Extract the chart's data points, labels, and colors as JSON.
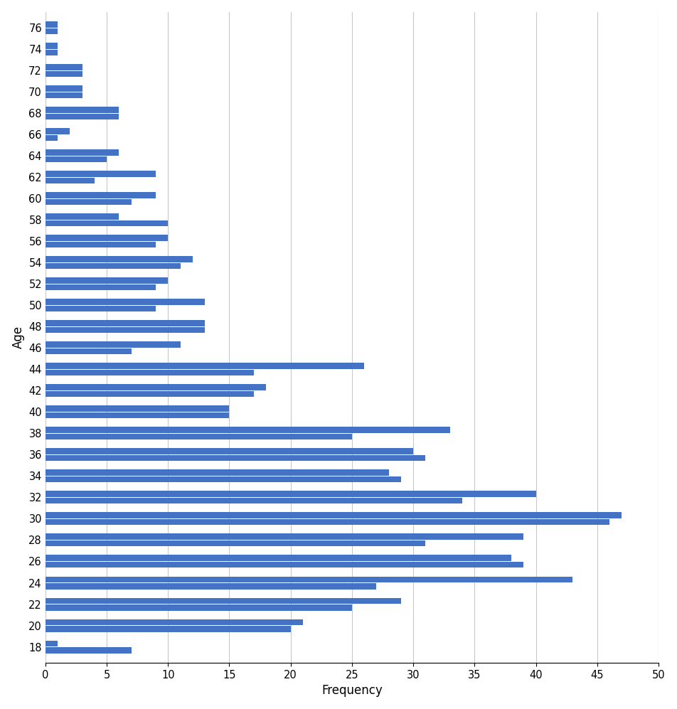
{
  "ages": [
    18,
    20,
    22,
    24,
    26,
    28,
    30,
    32,
    34,
    36,
    38,
    40,
    42,
    44,
    46,
    48,
    50,
    52,
    54,
    56,
    58,
    60,
    62,
    64,
    66,
    68,
    70,
    72,
    74,
    76
  ],
  "series_top": [
    1,
    21,
    29,
    43,
    38,
    39,
    47,
    40,
    28,
    30,
    33,
    15,
    18,
    26,
    11,
    13,
    13,
    10,
    12,
    10,
    6,
    9,
    9,
    6,
    2,
    6,
    3,
    3,
    1,
    1
  ],
  "series_bottom": [
    7,
    20,
    25,
    27,
    39,
    31,
    46,
    34,
    29,
    31,
    25,
    15,
    17,
    17,
    7,
    13,
    9,
    9,
    11,
    9,
    10,
    7,
    4,
    5,
    1,
    6,
    3,
    3,
    1,
    1
  ],
  "bar_color": "#4472C4",
  "xlabel": "Frequency",
  "ylabel": "Age",
  "xlim": [
    0,
    50
  ],
  "xticks": [
    0,
    5,
    10,
    15,
    20,
    25,
    30,
    35,
    40,
    45,
    50
  ],
  "background_color": "#ffffff",
  "grid_color": "#c8c8c8"
}
